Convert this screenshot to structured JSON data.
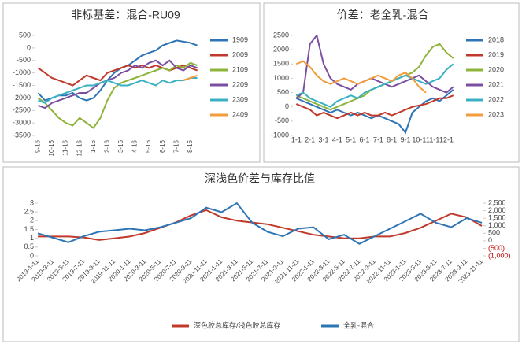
{
  "chart_data": [
    {
      "type": "line",
      "title": "非标基差：混合-RU09",
      "legend": "right",
      "categories": [
        "9-16",
        null,
        "10-16",
        null,
        "11-16",
        null,
        "12-16",
        null,
        "1-16",
        null,
        "2-16",
        null,
        "3-16",
        null,
        "4-16",
        null,
        "5-16",
        null,
        "6-16",
        null,
        "7-16",
        null,
        "8-16",
        null
      ],
      "ylim": [
        -3500,
        500
      ],
      "yticks": [
        500,
        0,
        -500,
        -1000,
        -1500,
        -2000,
        -2500,
        -3000,
        -3500
      ],
      "series": [
        {
          "name": "1909",
          "color": "#2e75b6",
          "values": [
            -1800,
            -2100,
            -2000,
            -1900,
            -1900,
            -1800,
            -2000,
            -2100,
            -2000,
            -1700,
            -1300,
            -1000,
            -800,
            -700,
            -500,
            -300,
            -200,
            -100,
            100,
            200,
            300,
            250,
            200,
            100
          ]
        },
        {
          "name": "2009",
          "color": "#c0392b",
          "values": [
            -800,
            -1000,
            -1200,
            -1300,
            -1400,
            -1500,
            -1300,
            -1100,
            -1200,
            -1300,
            -1000,
            -900,
            -800,
            -700,
            -800,
            -700,
            -800,
            -700,
            -800,
            -900,
            -800,
            -700,
            -800,
            -900
          ]
        },
        {
          "name": "2109",
          "color": "#8db33a",
          "values": [
            -2000,
            -2200,
            -2500,
            -2800,
            -3000,
            -3100,
            -2800,
            -3000,
            -3200,
            -2800,
            -2100,
            -1600,
            -1400,
            -1300,
            -1200,
            -1100,
            -1000,
            -900,
            -800,
            -900,
            -700,
            -800,
            -600,
            -700
          ]
        },
        {
          "name": "2209",
          "color": "#7b4fa0",
          "values": [
            -2300,
            -2400,
            -2200,
            -2100,
            -2000,
            -1900,
            -1800,
            -1800,
            -1600,
            -1400,
            -1300,
            -1200,
            -1000,
            -900,
            -700,
            -800,
            -600,
            -500,
            -700,
            -500,
            -800,
            -900,
            -700,
            -800
          ]
        },
        {
          "name": "2309",
          "color": "#3ab0c3",
          "values": [
            -2100,
            -2200,
            -2000,
            -1900,
            -1800,
            -1700,
            -1600,
            -1500,
            -1500,
            -1400,
            -1300,
            -1400,
            -1500,
            -1500,
            -1400,
            -1300,
            -1400,
            -1500,
            -1300,
            -1400,
            -1300,
            -1300,
            -1200,
            -1200
          ]
        },
        {
          "name": "2409",
          "color": "#f39c3c",
          "values": [
            null,
            null,
            null,
            null,
            null,
            null,
            null,
            null,
            null,
            null,
            null,
            null,
            null,
            null,
            null,
            null,
            null,
            null,
            null,
            null,
            null,
            -1300,
            -1200,
            -1100
          ]
        }
      ]
    },
    {
      "type": "line",
      "title": "价差：老全乳-混合",
      "legend": "right",
      "categories": [
        "1-1",
        null,
        "2-1",
        null,
        "3-1",
        null,
        "4-1",
        null,
        "5-1",
        null,
        "6-1",
        null,
        "7-1",
        null,
        "8-1",
        null,
        "9-1",
        null,
        "10-1",
        null,
        "11-1",
        null,
        "12-1",
        null
      ],
      "ylim": [
        -1000,
        2500
      ],
      "yticks": [
        2500,
        2000,
        1500,
        1000,
        500,
        0,
        -500,
        -1000
      ],
      "series": [
        {
          "name": "2018",
          "color": "#2e75b6",
          "values": [
            300,
            200,
            100,
            0,
            -100,
            -200,
            -100,
            -200,
            -300,
            -200,
            -300,
            -400,
            -300,
            -400,
            -500,
            -600,
            -900,
            -200,
            0,
            200,
            300,
            200,
            400,
            600
          ]
        },
        {
          "name": "2019",
          "color": "#c0392b",
          "values": [
            100,
            0,
            -100,
            -300,
            -200,
            -300,
            -400,
            -300,
            -200,
            -300,
            -200,
            -300,
            -300,
            -200,
            -300,
            -200,
            -100,
            0,
            50,
            100,
            200,
            300,
            300,
            400
          ]
        },
        {
          "name": "2020",
          "color": "#8db33a",
          "values": [
            400,
            300,
            200,
            100,
            0,
            -100,
            0,
            100,
            200,
            300,
            400,
            600,
            700,
            800,
            900,
            1000,
            1100,
            1200,
            1400,
            1800,
            2100,
            2200,
            1900,
            1700
          ]
        },
        {
          "name": "2021",
          "color": "#7b4fa0",
          "values": [
            300,
            500,
            2200,
            2500,
            1500,
            1000,
            800,
            700,
            600,
            800,
            900,
            1000,
            900,
            800,
            700,
            800,
            900,
            1000,
            1100,
            900,
            700,
            600,
            500,
            700
          ]
        },
        {
          "name": "2022",
          "color": "#3ab0c3",
          "values": [
            400,
            500,
            300,
            200,
            100,
            0,
            200,
            300,
            400,
            300,
            500,
            600,
            700,
            800,
            900,
            1000,
            1100,
            1000,
            900,
            800,
            900,
            1000,
            1300,
            1500
          ]
        },
        {
          "name": "2023",
          "color": "#f39c3c",
          "values": [
            1500,
            1600,
            1400,
            1100,
            900,
            800,
            900,
            1000,
            900,
            800,
            900,
            1000,
            1100,
            1000,
            900,
            1100,
            1200,
            1000,
            700,
            500,
            null,
            null,
            null,
            null
          ]
        }
      ]
    },
    {
      "type": "line",
      "title": "深浅色价差与库存比值",
      "legend": "bottom",
      "categories": [
        "2019-1-11",
        "2019-3-11",
        "2019-5-11",
        "2019-7-11",
        "2019-9-11",
        "2019-11-11",
        "2020-1-11",
        "2020-3-11",
        "2020-5-11",
        "2020-7-11",
        "2020-9-11",
        "2020-11-11",
        "2021-1-11",
        "2021-3-11",
        "2021-5-11",
        "2021-7-11",
        "2021-9-11",
        "2021-11-11",
        "2022-1-11",
        "2022-3-11",
        "2022-5-11",
        "2022-7-11",
        "2022-9-11",
        "2022-11-11",
        "2023-1-11",
        "2023-3-11",
        "2023-5-11",
        "2023-7-11",
        "2023-9-11",
        "2023-11-11"
      ],
      "ylim": [
        0,
        3
      ],
      "yticks": [
        0,
        0.5,
        1,
        1.5,
        2,
        2.5,
        3
      ],
      "y2lim": [
        -1000,
        2500
      ],
      "y2ticks": [
        {
          "value": -1000,
          "label": "(1,000)"
        },
        {
          "value": -500,
          "label": "(500)"
        },
        0,
        500,
        {
          "value": 1000,
          "label": "1,000"
        },
        {
          "value": 1500,
          "label": "1,500"
        },
        {
          "value": 2000,
          "label": "2,000"
        },
        {
          "value": 2500,
          "label": "2,500"
        }
      ],
      "series": [
        {
          "name": "深色胶总库存/浅色胶总库存",
          "color": "#c0392b",
          "values": [
            1.1,
            1.1,
            1.1,
            1.05,
            0.9,
            1.0,
            1.1,
            1.3,
            1.6,
            1.9,
            2.3,
            2.6,
            2.2,
            2.0,
            1.9,
            1.8,
            1.6,
            1.4,
            1.2,
            1.1,
            1.0,
            1.0,
            1.1,
            1.1,
            1.3,
            1.6,
            2.0,
            2.4,
            2.2,
            1.7
          ]
        },
        {
          "name": "全乳-混合",
          "color": "#2e75b6",
          "axis": "y2",
          "values": [
            500,
            200,
            -100,
            300,
            600,
            700,
            800,
            700,
            900,
            1200,
            1500,
            2200,
            1900,
            2500,
            1200,
            600,
            300,
            800,
            900,
            100,
            400,
            -200,
            300,
            800,
            1300,
            1800,
            1200,
            900,
            1500,
            1200
          ]
        }
      ]
    }
  ]
}
